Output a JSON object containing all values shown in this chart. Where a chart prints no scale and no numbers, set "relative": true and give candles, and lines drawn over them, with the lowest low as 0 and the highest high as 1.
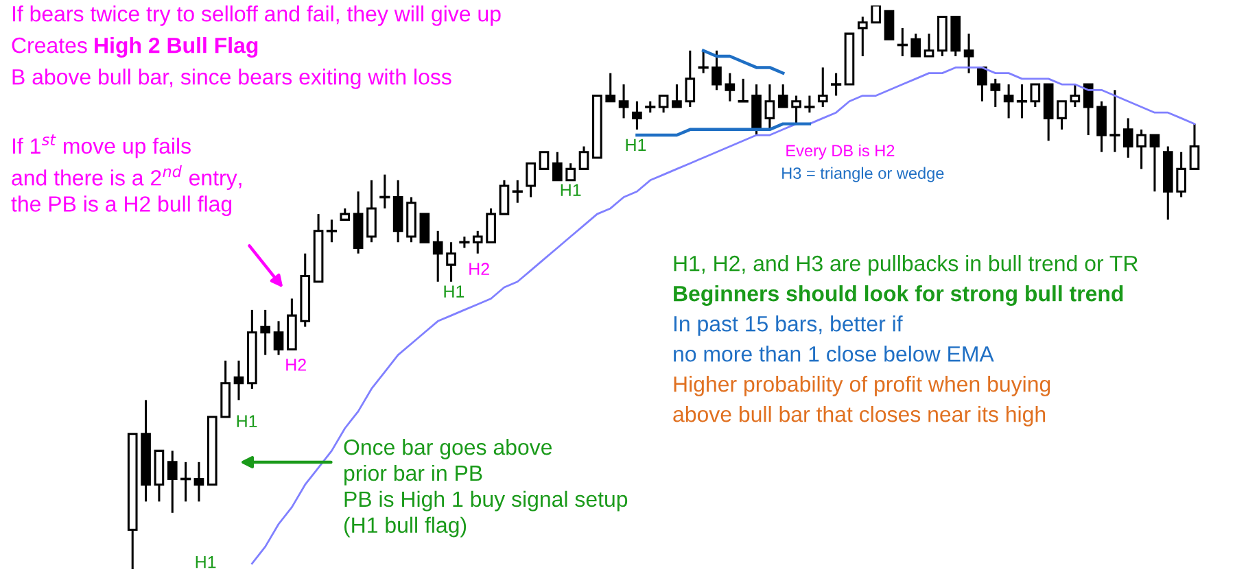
{
  "chart_data": {
    "type": "candlestick",
    "relative": true,
    "categories": [
      null,
      null,
      null,
      null,
      null,
      null,
      null,
      null,
      null,
      null,
      null,
      null,
      null,
      null,
      null,
      null,
      null,
      null,
      null,
      null,
      null,
      null,
      null,
      null,
      null,
      null,
      null,
      null,
      null,
      null,
      null,
      null,
      null,
      null,
      null,
      null,
      null,
      null,
      null,
      null,
      null,
      null,
      null,
      null,
      null,
      null,
      null,
      null,
      null,
      null,
      null,
      null,
      null,
      null,
      null,
      null,
      null,
      null,
      null,
      null,
      null,
      null,
      null,
      null,
      null,
      null,
      null,
      null,
      null,
      null,
      null,
      null,
      null,
      null,
      null,
      null,
      null,
      null,
      null,
      null,
      null
    ],
    "ohlc": [
      [
        0.07,
        0.24,
        0,
        0.24
      ],
      [
        0.24,
        0.3,
        0.12,
        0.15
      ],
      [
        0.15,
        0.21,
        0.12,
        0.21
      ],
      [
        0.19,
        0.21,
        0.1,
        0.16
      ],
      [
        0.16,
        0.19,
        0.12,
        0.16
      ],
      [
        0.16,
        0.19,
        0.12,
        0.15
      ],
      [
        0.15,
        0.27,
        0.15,
        0.27
      ],
      [
        0.27,
        0.37,
        0.27,
        0.33
      ],
      [
        0.34,
        0.37,
        0.3,
        0.33
      ],
      [
        0.33,
        0.46,
        0.32,
        0.42
      ],
      [
        0.43,
        0.46,
        0.38,
        0.42
      ],
      [
        0.42,
        0.44,
        0.38,
        0.39
      ],
      [
        0.39,
        0.48,
        0.39,
        0.45
      ],
      [
        0.44,
        0.56,
        0.43,
        0.52
      ],
      [
        0.51,
        0.63,
        0.51,
        0.6
      ],
      [
        0.6,
        0.62,
        0.58,
        0.6
      ],
      [
        0.62,
        0.64,
        0.62,
        0.63
      ],
      [
        0.63,
        0.67,
        0.56,
        0.57
      ],
      [
        0.59,
        0.69,
        0.58,
        0.64
      ],
      [
        0.66,
        0.7,
        0.64,
        0.66
      ],
      [
        0.66,
        0.69,
        0.58,
        0.6
      ],
      [
        0.59,
        0.66,
        0.58,
        0.65
      ],
      [
        0.63,
        0.63,
        0.58,
        0.58
      ],
      [
        0.58,
        0.6,
        0.51,
        0.56
      ],
      [
        0.54,
        0.58,
        0.51,
        0.56
      ],
      [
        0.58,
        0.59,
        0.57,
        0.58
      ],
      [
        0.58,
        0.6,
        0.56,
        0.59
      ],
      [
        0.58,
        0.64,
        0.58,
        0.63
      ],
      [
        0.63,
        0.69,
        0.63,
        0.68
      ],
      [
        0.67,
        0.69,
        0.65,
        0.67
      ],
      [
        0.68,
        0.72,
        0.66,
        0.72
      ],
      [
        0.71,
        0.74,
        0.71,
        0.74
      ],
      [
        0.72,
        0.74,
        0.69,
        0.69
      ],
      [
        0.69,
        0.72,
        0.69,
        0.71
      ],
      [
        0.71,
        0.75,
        0.71,
        0.74
      ],
      [
        0.73,
        0.84,
        0.73,
        0.84
      ],
      [
        0.84,
        0.88,
        0.83,
        0.83
      ],
      [
        0.83,
        0.86,
        0.8,
        0.82
      ],
      [
        0.81,
        0.83,
        0.78,
        0.8
      ],
      [
        0.82,
        0.83,
        0.81,
        0.82
      ],
      [
        0.82,
        0.84,
        0.81,
        0.84
      ],
      [
        0.83,
        0.86,
        0.82,
        0.82
      ],
      [
        0.83,
        0.92,
        0.82,
        0.87
      ],
      [
        0.89,
        0.92,
        0.88,
        0.89
      ],
      [
        0.89,
        0.92,
        0.85,
        0.86
      ],
      [
        0.86,
        0.88,
        0.83,
        0.85
      ],
      [
        0.83,
        0.87,
        0.83,
        0.83
      ],
      [
        0.84,
        0.86,
        0.77,
        0.78
      ],
      [
        0.8,
        0.86,
        0.78,
        0.83
      ],
      [
        0.84,
        0.86,
        0.82,
        0.82
      ],
      [
        0.82,
        0.84,
        0.79,
        0.83
      ],
      [
        0.82,
        0.84,
        0.81,
        0.82
      ],
      [
        0.83,
        0.89,
        0.82,
        0.84
      ],
      [
        0.86,
        0.88,
        0.84,
        0.86
      ],
      [
        0.86,
        0.95,
        0.86,
        0.95
      ],
      [
        0.96,
        0.98,
        0.91,
        0.97
      ],
      [
        0.97,
        1.0,
        0.97,
        1.0
      ],
      [
        0.99,
        0.99,
        0.94,
        0.94
      ],
      [
        0.93,
        0.96,
        0.91,
        0.93
      ],
      [
        0.94,
        0.95,
        0.91,
        0.91
      ],
      [
        0.91,
        0.95,
        0.91,
        0.92
      ],
      [
        0.92,
        0.98,
        0.91,
        0.98
      ],
      [
        0.98,
        0.98,
        0.91,
        0.92
      ],
      [
        0.92,
        0.95,
        0.88,
        0.91
      ],
      [
        0.89,
        0.89,
        0.83,
        0.86
      ],
      [
        0.86,
        0.87,
        0.82,
        0.85
      ],
      [
        0.84,
        0.86,
        0.8,
        0.83
      ],
      [
        0.83,
        0.86,
        0.8,
        0.83
      ],
      [
        0.83,
        0.86,
        0.82,
        0.86
      ],
      [
        0.86,
        0.86,
        0.76,
        0.8
      ],
      [
        0.8,
        0.83,
        0.78,
        0.83
      ],
      [
        0.83,
        0.86,
        0.82,
        0.84
      ],
      [
        0.86,
        0.86,
        0.77,
        0.82
      ],
      [
        0.82,
        0.83,
        0.74,
        0.77
      ],
      [
        0.77,
        0.85,
        0.74,
        0.77
      ],
      [
        0.78,
        0.8,
        0.73,
        0.75
      ],
      [
        0.75,
        0.78,
        0.71,
        0.77
      ],
      [
        0.77,
        0.77,
        0.67,
        0.75
      ],
      [
        0.74,
        0.75,
        0.62,
        0.67
      ],
      [
        0.67,
        0.74,
        0.66,
        0.71
      ],
      [
        0.71,
        0.79,
        0.71,
        0.75
      ]
    ],
    "series": [
      {
        "type": "line",
        "color": "#8080ff",
        "values": [
          null,
          null,
          null,
          null,
          null,
          null,
          null,
          null,
          null,
          0.01,
          0.04,
          0.08,
          0.11,
          0.15,
          0.18,
          0.21,
          0.25,
          0.28,
          0.32,
          0.35,
          0.38,
          0.4,
          0.42,
          0.44,
          0.45,
          0.46,
          0.47,
          0.48,
          0.5,
          0.51,
          0.53,
          0.55,
          0.57,
          0.59,
          0.61,
          0.63,
          0.64,
          0.66,
          0.67,
          0.69,
          0.7,
          0.71,
          0.72,
          0.73,
          0.74,
          0.75,
          0.76,
          0.77,
          0.77,
          0.78,
          0.79,
          0.79,
          0.8,
          0.81,
          0.83,
          0.84,
          0.84,
          0.85,
          0.86,
          0.87,
          0.88,
          0.88,
          0.89,
          0.89,
          0.89,
          0.88,
          0.88,
          0.87,
          0.87,
          0.87,
          0.86,
          0.86,
          0.85,
          0.85,
          0.84,
          0.83,
          0.82,
          0.81,
          0.81,
          0.8,
          0.79
        ]
      },
      {
        "type": "line",
        "color": "#1f6fc4",
        "values": [
          null,
          null,
          null,
          null,
          null,
          null,
          null,
          null,
          null,
          null,
          null,
          null,
          null,
          null,
          null,
          null,
          null,
          null,
          null,
          null,
          null,
          null,
          null,
          null,
          null,
          null,
          null,
          null,
          null,
          null,
          null,
          null,
          null,
          null,
          null,
          null,
          null,
          null,
          null,
          null,
          null,
          null,
          null,
          0.92,
          0.91,
          0.91,
          0.9,
          0.89,
          0.89,
          0.88,
          null,
          null,
          null,
          null,
          null,
          null,
          null,
          null,
          null,
          null,
          null,
          null,
          null,
          null,
          null,
          null,
          null,
          null,
          null,
          null,
          null,
          null,
          null,
          null,
          null,
          null,
          null,
          null,
          null,
          null,
          null
        ]
      },
      {
        "type": "line",
        "color": "#1f6fc4",
        "values": [
          null,
          null,
          null,
          null,
          null,
          null,
          null,
          null,
          null,
          null,
          null,
          null,
          null,
          null,
          null,
          null,
          null,
          null,
          null,
          null,
          null,
          null,
          null,
          null,
          null,
          null,
          null,
          null,
          null,
          null,
          null,
          null,
          null,
          null,
          null,
          null,
          null,
          null,
          0.77,
          0.77,
          0.77,
          0.77,
          0.78,
          0.78,
          0.78,
          0.78,
          0.78,
          0.78,
          0.78,
          0.79,
          0.79,
          0.79,
          null,
          null,
          null,
          null,
          null,
          null,
          null,
          null,
          null,
          null,
          null,
          null,
          null,
          null,
          null,
          null,
          null,
          null,
          null,
          null,
          null,
          null,
          null,
          null,
          null,
          null,
          null,
          null,
          null
        ]
      }
    ],
    "annotations": [
      "If bears twice try to selloff and fail, they will give up",
      "Creates",
      "High 2 Bull Flag",
      "B above bull bar, since bears exiting with loss",
      "If 1$^{st}$ move up fails\nand there is a 2$^{nd}$ entry,\nthe PB is a H2 bull flag",
      "Once bar goes above\nprior bar in PB\nPB is High 1 buy signal setup\n(H1 bull flag)",
      "H1, H2, and H3 are pullbacks in bull trend or TR",
      "Beginners should look for strong bull trend",
      "In past 15 bars, better if",
      "no more than 1 close below EMA",
      "Higher probability of profit when buying",
      "above bull bar that closes near its high",
      "H1",
      "H1",
      "H2",
      "H1",
      "H2",
      "H1",
      "H1",
      "Every DB is H2",
      "H3 = triangle or wedge"
    ]
  }
}
